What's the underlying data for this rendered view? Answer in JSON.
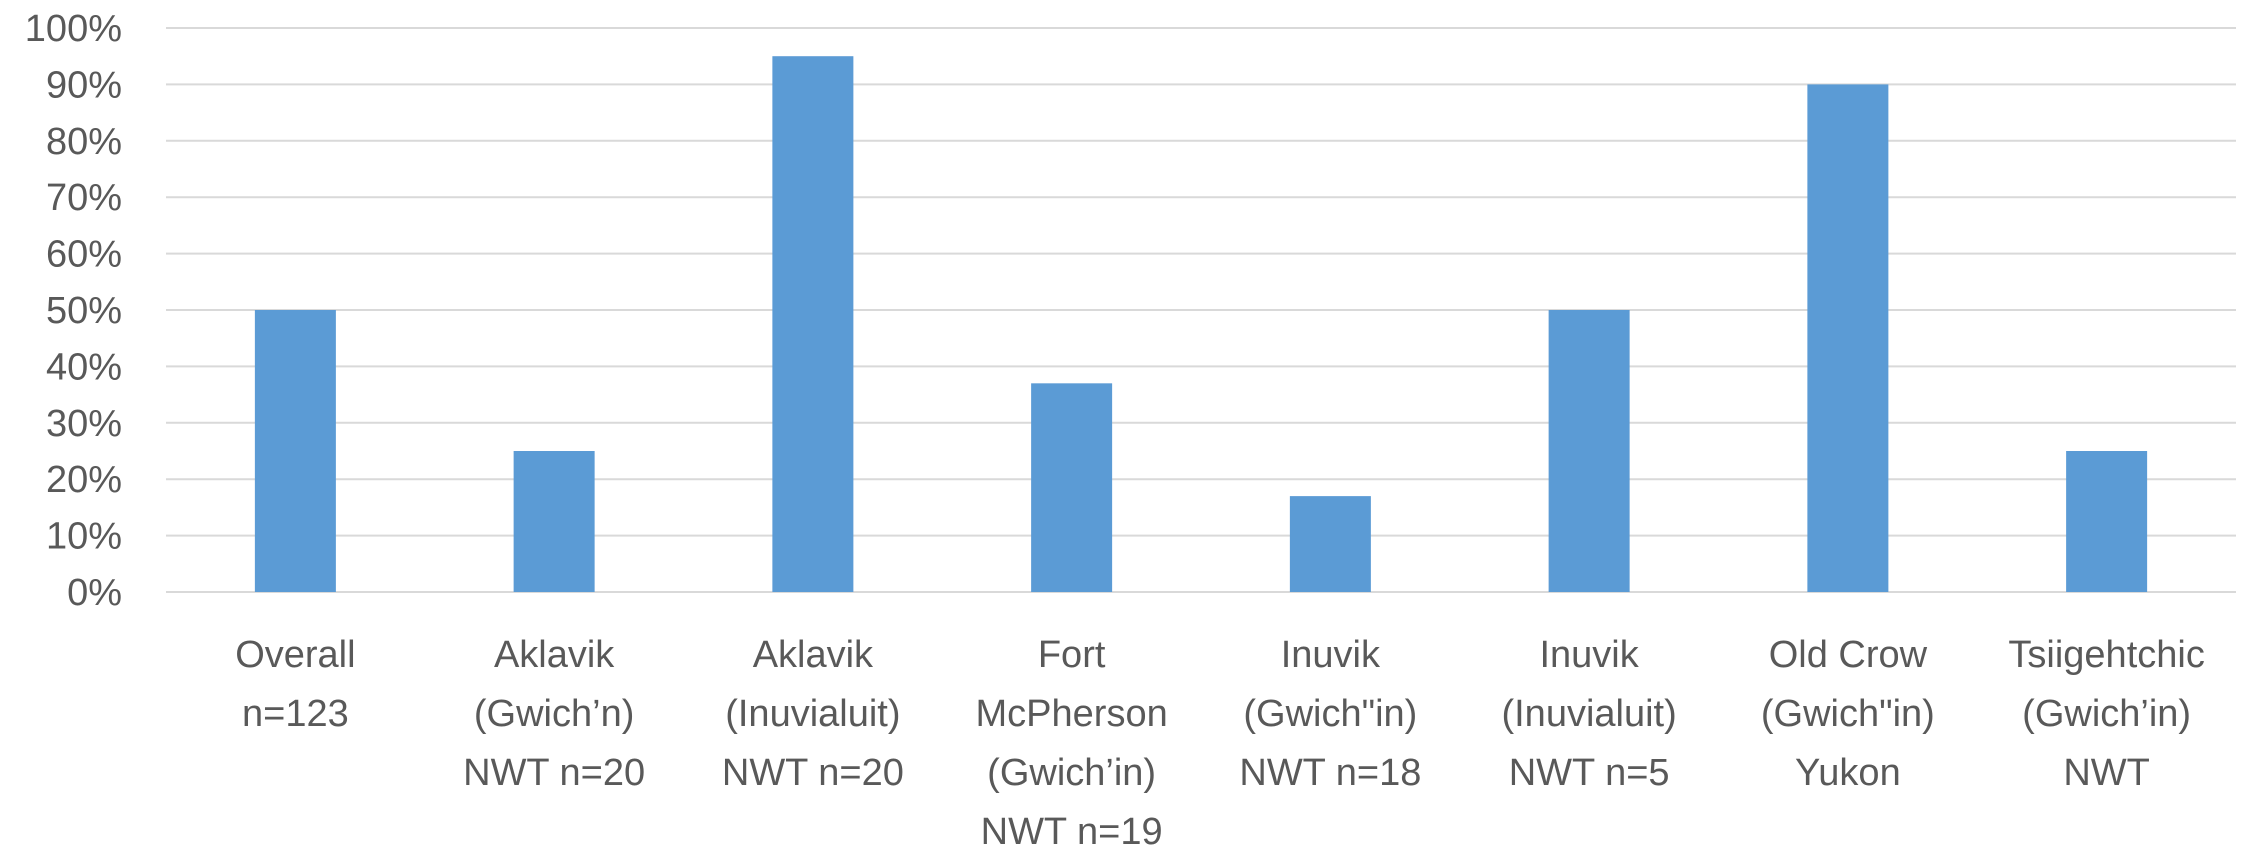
{
  "chart_data": {
    "type": "bar",
    "title": "",
    "xlabel": "",
    "ylabel": "",
    "ylim": [
      0,
      100
    ],
    "y_ticks": [
      "0%",
      "10%",
      "20%",
      "30%",
      "40%",
      "50%",
      "60%",
      "70%",
      "80%",
      "90%",
      "100%"
    ],
    "grid": true,
    "legend": "none",
    "bar_color": "#5b9bd5",
    "categories": [
      [
        "Overall",
        "n=123"
      ],
      [
        "Aklavik",
        "(Gwich’n)",
        "NWT n=20"
      ],
      [
        "Aklavik",
        "(Inuvialuit)",
        "NWT n=20"
      ],
      [
        "Fort",
        "McPherson",
        "(Gwich’in)",
        "NWT n=19"
      ],
      [
        "Inuvik",
        "(Gwich\"in)",
        "NWT n=18"
      ],
      [
        "Inuvik",
        "(Inuvialuit)",
        "NWT n=5"
      ],
      [
        "Old Crow",
        "(Gwich\"in)",
        "Yukon"
      ],
      [
        "Tsiigehtchic",
        "(Gwich’in)",
        "NWT"
      ]
    ],
    "values": [
      50,
      25,
      95,
      37,
      17,
      50,
      90,
      25
    ]
  }
}
